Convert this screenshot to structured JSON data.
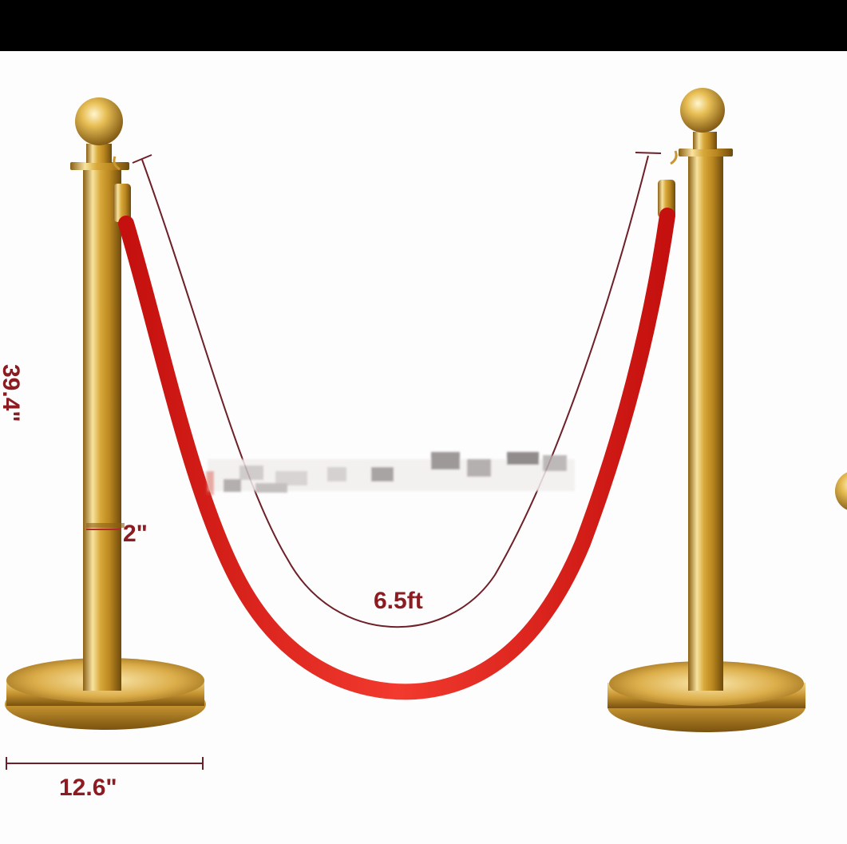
{
  "dimensions": {
    "height": "39.4\"",
    "pole_diameter": "2\"",
    "base_diameter": "12.6\"",
    "rope_length": "6.5ft"
  },
  "colors": {
    "gold_light": "#f7e3a0",
    "gold_mid": "#d8a93a",
    "gold_dark": "#8a5f14",
    "rope": "#e0221d",
    "dimension_line": "#6e1f27",
    "dimension_text": "#8c1c22",
    "background": "#fdfdfd"
  }
}
